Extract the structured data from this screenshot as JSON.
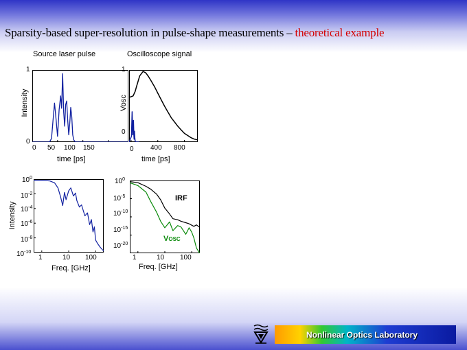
{
  "slide": {
    "title_main": "Sparsity-based super-resolution in pulse-shape measurements – ",
    "title_accent": "theoretical example",
    "footer_label": "Nonlinear Optics Laboratory",
    "logo_icon": "technion-logo-icon",
    "colors": {
      "blue_trace": "#1020a0",
      "black_trace": "#000000",
      "green_trace": "#0a8a0a",
      "title_accent": "#d40000"
    }
  },
  "chart_data": [
    {
      "type": "line",
      "title": "Source laser pulse",
      "xlabel": "time [ps]",
      "ylabel": "Intensity",
      "xticks": [
        "0",
        "50",
        "100",
        "150"
      ],
      "yticks": [
        "0",
        "1"
      ],
      "xlim": [
        0,
        190
      ],
      "ylim": [
        0,
        1
      ],
      "series": [
        {
          "color": "#1020a0",
          "x": [
            0,
            34,
            38,
            41,
            44,
            47,
            50,
            53,
            56,
            58,
            60,
            62,
            64,
            66,
            68,
            70,
            72,
            74,
            76,
            78,
            80,
            82,
            85,
            88,
            92,
            190
          ],
          "y": [
            0,
            0,
            0.05,
            0.3,
            0.54,
            0.32,
            0.08,
            0.45,
            0.64,
            0.47,
            0.95,
            0.42,
            0.22,
            0.52,
            0.57,
            0.3,
            0.1,
            0.25,
            0.48,
            0.35,
            0.1,
            0.03,
            0,
            0,
            0,
            0
          ]
        }
      ]
    },
    {
      "type": "line",
      "title": "Oscilloscope signal",
      "xlabel": "time [ps]",
      "ylabel": "Vosc",
      "xticks": [
        "0",
        "400",
        "800"
      ],
      "yticks": [
        "0",
        "1"
      ],
      "xlim": [
        -30,
        1000
      ],
      "ylim": [
        0,
        1
      ],
      "series": [
        {
          "color": "#000000",
          "x": [
            -30,
            30,
            60,
            90,
            130,
            180,
            220,
            260,
            300,
            350,
            400,
            450,
            500,
            550,
            600,
            650,
            700,
            750,
            800,
            850,
            900,
            950,
            1000
          ],
          "y": [
            0.62,
            0.64,
            0.7,
            0.8,
            0.92,
            0.98,
            0.96,
            0.91,
            0.85,
            0.77,
            0.68,
            0.59,
            0.5,
            0.42,
            0.34,
            0.28,
            0.22,
            0.17,
            0.12,
            0.09,
            0.06,
            0.04,
            0.03
          ]
        },
        {
          "color": "#1020a0",
          "x": [
            -30,
            5,
            10,
            15,
            20,
            25,
            30,
            35,
            40,
            45,
            50,
            55,
            60,
            70,
            80,
            120
          ],
          "y": [
            0,
            0.08,
            0.25,
            0.42,
            0.22,
            0.1,
            0.18,
            0.3,
            0.12,
            0.04,
            0.15,
            0.06,
            0.02,
            0,
            0,
            0
          ]
        }
      ]
    },
    {
      "type": "line",
      "ylabel": "Intensity",
      "xlabel": "Freq. [GHz]",
      "xticks": [
        "1",
        "10",
        "100"
      ],
      "yticks": [
        "10^0",
        "10^-2",
        "10^-4",
        "10^-6",
        "10^-8",
        "10^-10"
      ],
      "xscale": "log",
      "yscale": "log",
      "xlim": [
        0.5,
        200
      ],
      "ylim": [
        -10,
        0
      ],
      "series": [
        {
          "color": "#1020a0",
          "x": [
            0.5,
            1,
            2,
            3,
            4,
            5,
            6,
            7,
            8,
            10,
            12,
            15,
            18,
            20,
            25,
            30,
            35,
            40,
            50,
            60,
            70,
            80,
            90,
            100,
            120,
            150,
            200
          ],
          "y": [
            -0.15,
            -0.15,
            -0.25,
            -0.5,
            -1.2,
            -2.4,
            -3.6,
            -1.8,
            -2.8,
            -1.6,
            -1.2,
            -2.3,
            -1.9,
            -2.9,
            -3.8,
            -3.5,
            -4.3,
            -5.0,
            -4.6,
            -6.2,
            -5.5,
            -7.2,
            -6.5,
            -8.3,
            -8.8,
            -9.3,
            -9.8
          ]
        }
      ]
    },
    {
      "type": "line",
      "xlabel": "Freq. [GHz]",
      "xticks": [
        "1",
        "10",
        "100"
      ],
      "yticks": [
        "10^0",
        "10^-5",
        "10^-10",
        "10^-15",
        "10^-20"
      ],
      "xscale": "log",
      "yscale": "log",
      "xlim": [
        0.5,
        200
      ],
      "ylim": [
        -20,
        0
      ],
      "annotations": [
        {
          "text": "IRF"
        },
        {
          "text": "V",
          "sub": "OSC"
        }
      ],
      "series": [
        {
          "color": "#000000",
          "x": [
            0.5,
            1,
            2,
            3,
            5,
            7,
            10,
            15,
            20,
            30,
            40,
            60,
            80,
            100,
            120,
            150,
            200
          ],
          "y": [
            -0.3,
            -0.6,
            -1.6,
            -2.4,
            -3.8,
            -5.3,
            -7.6,
            -9.2,
            -10.5,
            -10.8,
            -11.2,
            -11.6,
            -11.9,
            -12.3,
            -12.6,
            -12.2,
            -12.9
          ]
        },
        {
          "color": "#0a8a0a",
          "x": [
            0.5,
            1,
            2,
            3,
            5,
            7,
            10,
            15,
            20,
            30,
            40,
            60,
            80,
            100,
            120,
            150,
            200
          ],
          "y": [
            -0.6,
            -1.4,
            -3.2,
            -5.8,
            -8.8,
            -11.2,
            -13.0,
            -11.4,
            -13.8,
            -12.4,
            -12.8,
            -14.8,
            -13.0,
            -14.2,
            -15.8,
            -18.6,
            -20.0
          ]
        }
      ]
    }
  ]
}
